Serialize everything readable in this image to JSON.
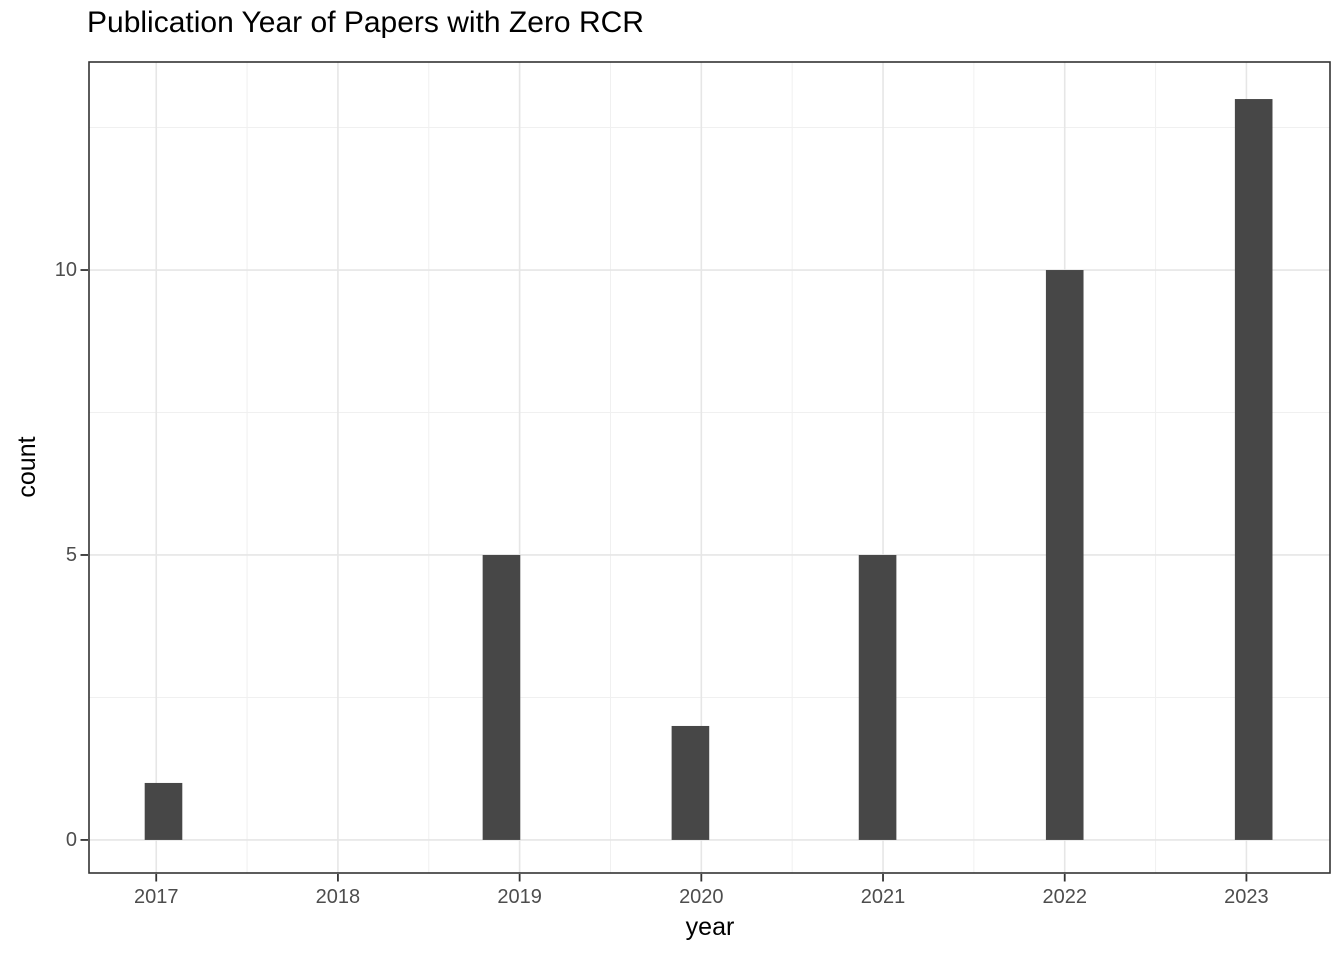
{
  "chart_data": {
    "type": "bar",
    "variant": "histogram",
    "title": "Publication Year of Papers with Zero RCR",
    "xlabel": "year",
    "ylabel": "count",
    "counts_by_year": {
      "2017": 1,
      "2018": 0,
      "2019": 5,
      "2020": 2,
      "2021": 5,
      "2022": 10,
      "2023": 13
    },
    "bar_years": [
      2017,
      2019,
      2020,
      2021,
      2022,
      2023
    ],
    "values": [
      1,
      5,
      2,
      5,
      10,
      13
    ],
    "bar_centers": [
      2017.04,
      2018.9,
      2019.94,
      2020.97,
      2022.0,
      2023.04
    ],
    "bar_width": 0.207,
    "x_ticks": [
      2017,
      2018,
      2019,
      2020,
      2021,
      2022,
      2023
    ],
    "y_ticks": [
      0,
      5,
      10
    ],
    "x_minor": [
      2017.5,
      2018.5,
      2019.5,
      2020.5,
      2021.5,
      2022.5
    ],
    "y_minor": [
      2.5,
      7.5,
      12.5
    ],
    "xlim": [
      2016.63,
      2023.46
    ],
    "ylim": [
      -0.58,
      13.65
    ],
    "grid": "major+minor",
    "legend": "none",
    "colors": {
      "bar": "#474747",
      "grid_major": "#e6e6e6",
      "grid_minor": "#f0f0f0",
      "panel_border": "#333333",
      "tick_mark": "#333333",
      "tick_label": "#4d4d4d",
      "title": "#000000",
      "axis_title": "#000000",
      "background": "#ffffff"
    }
  }
}
